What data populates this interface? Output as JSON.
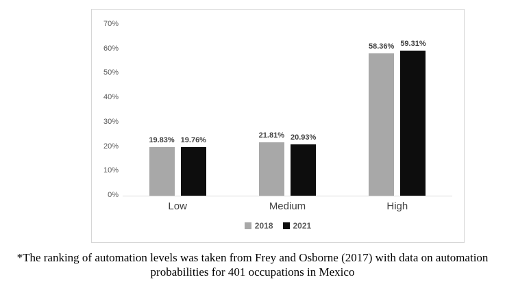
{
  "chart_data": {
    "type": "bar",
    "categories": [
      "Low",
      "Medium",
      "High"
    ],
    "series": [
      {
        "name": "2018",
        "color": "#a8a8a8",
        "values": [
          19.83,
          21.81,
          58.36
        ],
        "labels": [
          "19.83%",
          "21.81%",
          "58.36%"
        ]
      },
      {
        "name": "2021",
        "color": "#0d0d0d",
        "values": [
          19.76,
          20.93,
          59.31
        ],
        "labels": [
          "19.76%",
          "20.93%",
          "59.31%"
        ]
      }
    ],
    "ylim": [
      0,
      70
    ],
    "yticks": [
      0,
      10,
      20,
      30,
      40,
      50,
      60,
      70
    ],
    "ytick_labels": [
      "0%",
      "10%",
      "20%",
      "30%",
      "40%",
      "50%",
      "60%",
      "70%"
    ],
    "grid": false,
    "legend_position": "bottom",
    "title": "",
    "xlabel": "",
    "ylabel": ""
  },
  "caption": "*The ranking of automation levels was taken from Frey and Osborne (2017) with data on automation probabilities for 401 occupations in Mexico"
}
